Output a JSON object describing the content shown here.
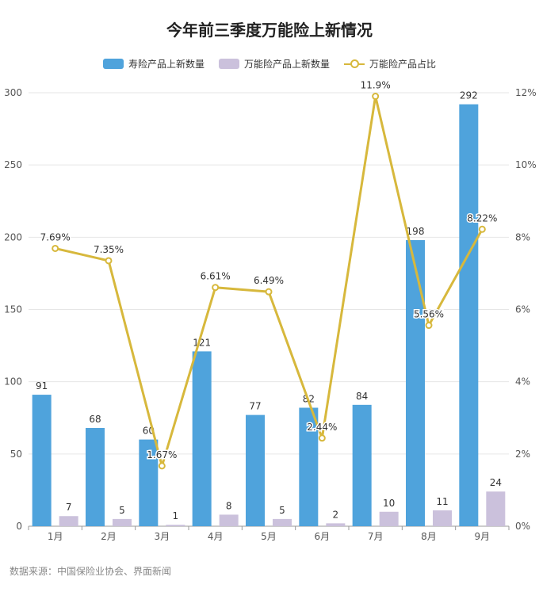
{
  "chart_data": {
    "type": "bar",
    "title": "今年前三季度万能险上新情况",
    "categories": [
      "1月",
      "2月",
      "3月",
      "4月",
      "5月",
      "6月",
      "7月",
      "8月",
      "9月"
    ],
    "series": [
      {
        "name": "寿险产品上新数量",
        "kind": "bar",
        "axis": "left",
        "color": "#4fa3dc",
        "values": [
          91,
          68,
          60,
          121,
          77,
          82,
          84,
          198,
          292
        ],
        "labels": [
          "91",
          "68",
          "60",
          "121",
          "77",
          "82",
          "84",
          "198",
          "292"
        ]
      },
      {
        "name": "万能险产品上新数量",
        "kind": "bar",
        "axis": "left",
        "color": "#cbc1dc",
        "values": [
          7,
          5,
          1,
          8,
          5,
          2,
          10,
          11,
          24
        ],
        "labels": [
          "7",
          "5",
          "1",
          "8",
          "5",
          "2",
          "10",
          "11",
          "24"
        ]
      },
      {
        "name": "万能险产品占比",
        "kind": "line",
        "axis": "right",
        "color": "#d7b83c",
        "values": [
          7.69,
          7.35,
          1.67,
          6.61,
          6.49,
          2.44,
          11.9,
          5.56,
          8.22
        ],
        "labels": [
          "7.69%",
          "7.35%",
          "1.67%",
          "6.61%",
          "6.49%",
          "2.44%",
          "11.9%",
          "5.56%",
          "8.22%"
        ]
      }
    ],
    "y_left": {
      "ylim": [
        0,
        300
      ],
      "ticks": [
        0,
        50,
        100,
        150,
        200,
        250,
        300
      ],
      "tick_labels": [
        "0",
        "50",
        "100",
        "150",
        "200",
        "250",
        "300"
      ]
    },
    "y_right": {
      "ylim": [
        0,
        12
      ],
      "ticks": [
        0,
        2,
        4,
        6,
        8,
        10,
        12
      ],
      "tick_labels": [
        "0%",
        "2%",
        "4%",
        "6%",
        "8%",
        "10%",
        "12%"
      ]
    },
    "grid": true,
    "legend_position": "top-center"
  },
  "source_note": "数据来源：中国保险业协会、界面新闻"
}
